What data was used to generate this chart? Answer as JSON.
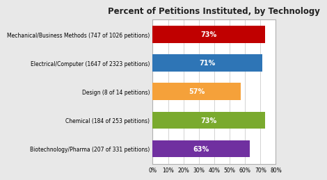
{
  "title": "Percent of Petitions Instituted, by Technology",
  "categories": [
    "Mechanical/Business Methods (747 of 1026 petitions)",
    "Electrical/Computer (1647 of 2323 petitions)",
    "Design (8 of 14 petitions)",
    "Chemical (184 of 253 petitions)",
    "Biotechnology/Pharma (207 of 331 petitions)"
  ],
  "values": [
    73,
    71,
    57,
    73,
    63
  ],
  "bar_colors": [
    "#c00000",
    "#2e75b6",
    "#f5a13a",
    "#7aaa2e",
    "#7030a0"
  ],
  "bar_labels": [
    "73%",
    "71%",
    "57%",
    "73%",
    "63%"
  ],
  "xlim": [
    0,
    80
  ],
  "xticks": [
    0,
    10,
    20,
    30,
    40,
    50,
    60,
    70,
    80
  ],
  "xticklabels": [
    "0%",
    "10%",
    "20%",
    "30%",
    "40%",
    "50%",
    "60%",
    "70%",
    "80%"
  ],
  "outer_bg": "#e8e8e8",
  "inner_bg": "#ffffff",
  "border_color": "#b0b0b0",
  "title_fontsize": 8.5,
  "label_fontsize": 5.5,
  "tick_fontsize": 5.5,
  "value_fontsize": 7
}
